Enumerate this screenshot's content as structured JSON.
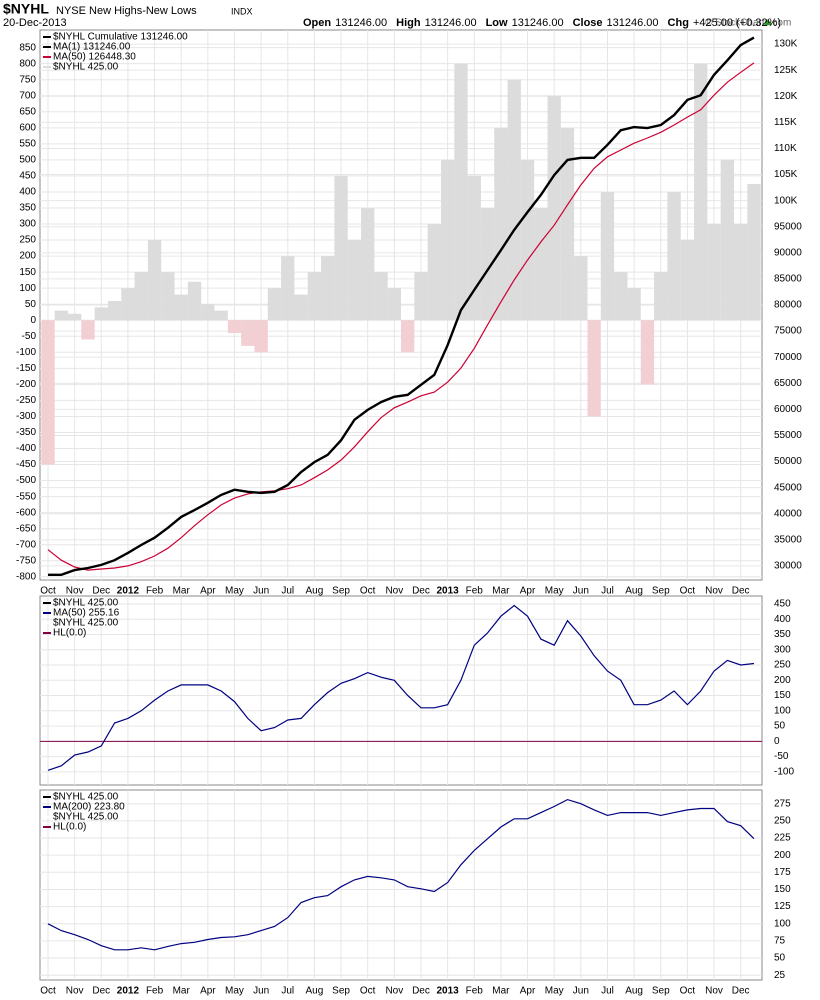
{
  "header": {
    "symbol": "$NYHL",
    "name": "NYSE New Highs-New Lows",
    "exchange": "INDX",
    "date": "20-Dec-2013",
    "ohlc": [
      {
        "label": "Open",
        "value": "131246.00"
      },
      {
        "label": "High",
        "value": "131246.00"
      },
      {
        "label": "Low",
        "value": "131246.00"
      },
      {
        "label": "Close",
        "value": "131246.00"
      },
      {
        "label": "Chg",
        "value": "+425.00 (+0.32%)"
      }
    ],
    "credit": "© StockCharts.com"
  },
  "chart_data": [
    {
      "type": "line",
      "label": "$NYHL  Cumulative 131246.00",
      "grid": true,
      "ytick_side": "left",
      "categories": [
        "Oct",
        null,
        "Nov",
        null,
        "Dec",
        null,
        "2012",
        null,
        "Feb",
        null,
        "Mar",
        null,
        "Apr",
        null,
        "May",
        null,
        "Jun",
        null,
        "Jul",
        null,
        "Aug",
        null,
        "Sep",
        null,
        "Oct",
        null,
        "Nov",
        null,
        "Dec",
        null,
        "2013",
        null,
        "Feb",
        null,
        "Mar",
        null,
        "Apr",
        null,
        "May",
        null,
        "Jun",
        null,
        "Jul",
        null,
        "Aug",
        null,
        "Sep",
        null,
        "Oct",
        null,
        "Nov",
        null,
        "Dec",
        null
      ],
      "series": [
        {
          "name": "$NYHL  425.00",
          "kind": "bars",
          "color": "#dcdcdc",
          "negative_color": "#f2cfd3",
          "axis": "y",
          "values": [
            -450,
            30,
            20,
            -60,
            40,
            60,
            100,
            150,
            250,
            150,
            80,
            120,
            50,
            30,
            -40,
            -80,
            -100,
            100,
            200,
            80,
            150,
            200,
            450,
            250,
            350,
            150,
            100,
            -100,
            150,
            300,
            500,
            800,
            450,
            350,
            600,
            750,
            500,
            350,
            700,
            600,
            200,
            -300,
            400,
            150,
            100,
            -200,
            150,
            400,
            250,
            800,
            300,
            500,
            300,
            425
          ]
        },
        {
          "name": "MA(50) 126448.30",
          "kind": "line",
          "color": "#cc0033",
          "axis": "y2",
          "values": [
            33100,
            31100,
            29800,
            29200,
            29400,
            29600,
            30000,
            30800,
            31900,
            33400,
            35400,
            37700,
            39800,
            41700,
            43000,
            43800,
            44200,
            44400,
            44800,
            45500,
            46900,
            48400,
            50300,
            52800,
            55700,
            58400,
            60300,
            61400,
            62600,
            63300,
            65200,
            67900,
            71700,
            76200,
            80600,
            84800,
            88600,
            92100,
            95300,
            99200,
            103000,
            106200,
            108400,
            109700,
            111000,
            112000,
            113100,
            114500,
            116000,
            117400,
            120200,
            122700,
            124600,
            126400
          ]
        },
        {
          "name": "MA(1) 131246.00",
          "kind": "line",
          "width": 2.4,
          "color": "#000000",
          "axis": "y2",
          "values": [
            28300,
            28300,
            29200,
            29600,
            30200,
            31100,
            32500,
            34000,
            35400,
            37300,
            39400,
            40700,
            42100,
            43600,
            44600,
            44200,
            44000,
            44200,
            45500,
            48000,
            49900,
            51300,
            54100,
            58000,
            59900,
            61400,
            62400,
            62800,
            64700,
            66600,
            72300,
            79000,
            82900,
            86700,
            90500,
            94400,
            97800,
            101100,
            104900,
            107800,
            108200,
            108200,
            110700,
            113500,
            114100,
            113900,
            114500,
            116400,
            119300,
            120200,
            124100,
            126900,
            129800,
            131246
          ]
        }
      ],
      "ylim": [
        -810,
        905
      ],
      "yticks": [
        850,
        800,
        750,
        700,
        650,
        600,
        550,
        500,
        450,
        400,
        350,
        300,
        250,
        200,
        150,
        100,
        50,
        0,
        -50,
        -100,
        -150,
        -200,
        -250,
        -300,
        -350,
        -400,
        -450,
        -500,
        -550,
        -600,
        -650,
        -700,
        -750,
        -800
      ],
      "y2lim": [
        27300,
        132700
      ],
      "y2ticks": [
        {
          "value": 130000,
          "label": "130K"
        },
        {
          "value": 125000,
          "label": "125K"
        },
        {
          "value": 120000,
          "label": "120K"
        },
        {
          "value": 115000,
          "label": "115K"
        },
        {
          "value": 110000,
          "label": "110K"
        },
        {
          "value": 105000,
          "label": "105K"
        },
        {
          "value": 100000,
          "label": "100K"
        },
        95000,
        90000,
        85000,
        80000,
        75000,
        70000,
        65000,
        60000,
        55000,
        50000,
        45000,
        40000,
        35000,
        30000
      ]
    },
    {
      "type": "line",
      "label": "$NYHL  425.00",
      "legend_extra": "$NYHL  425.00",
      "grid": true,
      "ytick_side": "right",
      "series": [
        {
          "name": "MA(50) 255.16",
          "kind": "line",
          "color": "#000080",
          "axis": "y",
          "values": [
            -95,
            -80,
            -45,
            -35,
            -15,
            60,
            75,
            100,
            135,
            165,
            185,
            185,
            185,
            165,
            130,
            75,
            35,
            45,
            70,
            75,
            120,
            160,
            190,
            205,
            225,
            210,
            200,
            150,
            110,
            110,
            120,
            200,
            315,
            355,
            410,
            445,
            410,
            335,
            315,
            395,
            345,
            280,
            230,
            200,
            120,
            120,
            135,
            165,
            120,
            165,
            230,
            265,
            250,
            255
          ]
        }
      ],
      "hline": {
        "name": "HL(0.0)",
        "value": 0,
        "color": "#800040"
      },
      "ylim": [
        -143,
        476
      ],
      "yticks": [
        450,
        400,
        350,
        300,
        250,
        200,
        150,
        100,
        50,
        0,
        -50,
        -100
      ]
    },
    {
      "type": "line",
      "label": "$NYHL  425.00",
      "legend_extra": "$NYHL  425.00",
      "grid": true,
      "ytick_side": "right",
      "categories": [
        "Oct",
        null,
        "Nov",
        null,
        "Dec",
        null,
        "2012",
        null,
        "Feb",
        null,
        "Mar",
        null,
        "Apr",
        null,
        "May",
        null,
        "Jun",
        null,
        "Jul",
        null,
        "Aug",
        null,
        "Sep",
        null,
        "Oct",
        null,
        "Nov",
        null,
        "Dec",
        null,
        "2013",
        null,
        "Feb",
        null,
        "Mar",
        null,
        "Apr",
        null,
        "May",
        null,
        "Jun",
        null,
        "Jul",
        null,
        "Aug",
        null,
        "Sep",
        null,
        "Oct",
        null,
        "Nov",
        null,
        "Dec",
        null
      ],
      "series": [
        {
          "name": "MA(200) 223.80",
          "kind": "line",
          "color": "#000080",
          "axis": "y",
          "values": [
            100,
            90,
            84,
            77,
            68,
            62,
            62,
            65,
            62,
            67,
            71,
            73,
            77,
            80,
            81,
            84,
            90,
            96,
            109,
            131,
            138,
            141,
            154,
            164,
            169,
            167,
            164,
            154,
            151,
            147,
            160,
            186,
            207,
            224,
            241,
            253,
            253,
            262,
            271,
            281,
            275,
            266,
            258,
            262,
            262,
            262,
            258,
            262,
            266,
            268,
            268,
            249,
            243,
            224
          ]
        }
      ],
      "hline": {
        "name": "HL(0.0)",
        "value": 0,
        "color": "#800040"
      },
      "ylim": [
        18,
        295
      ],
      "yticks": [
        275,
        250,
        225,
        200,
        175,
        150,
        125,
        100,
        75,
        50,
        25
      ]
    }
  ]
}
